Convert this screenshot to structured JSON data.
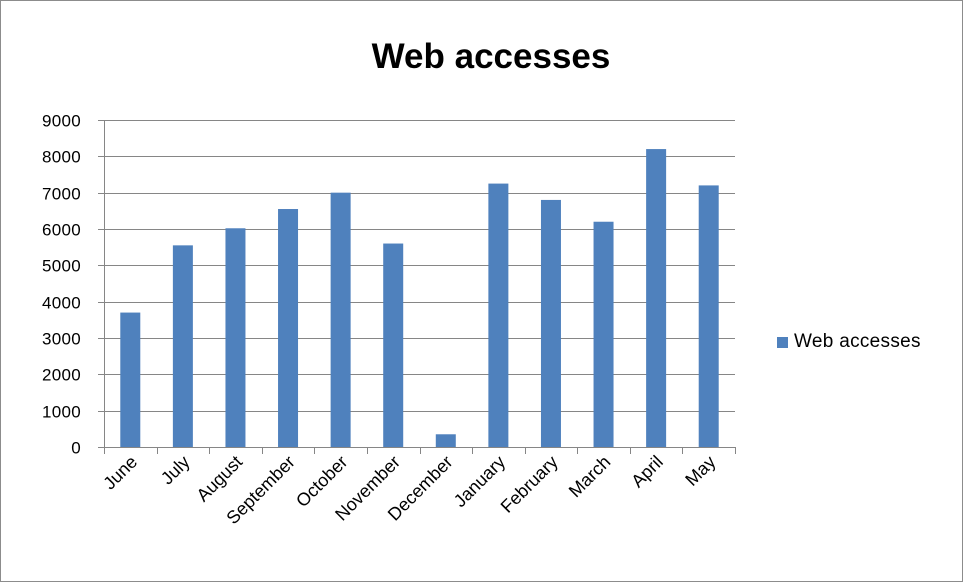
{
  "chart_data": {
    "type": "bar",
    "title": "Web accesses",
    "xlabel": "",
    "ylabel": "",
    "categories": [
      "June",
      "July",
      "August",
      "September",
      "October",
      "November",
      "December",
      "January",
      "February",
      "March",
      "April",
      "May"
    ],
    "series": [
      {
        "name": "Web accesses",
        "values": [
          3700,
          5550,
          6020,
          6550,
          7000,
          5600,
          350,
          7250,
          6800,
          6200,
          8200,
          7200
        ]
      }
    ],
    "ylim": [
      0,
      9000
    ],
    "yticks": [
      0,
      1000,
      2000,
      3000,
      4000,
      5000,
      6000,
      7000,
      8000,
      9000
    ],
    "grid": true,
    "legend": "right",
    "colors": {
      "bar": "#4f81bd",
      "grid": "#868686",
      "axis": "#868686"
    }
  }
}
